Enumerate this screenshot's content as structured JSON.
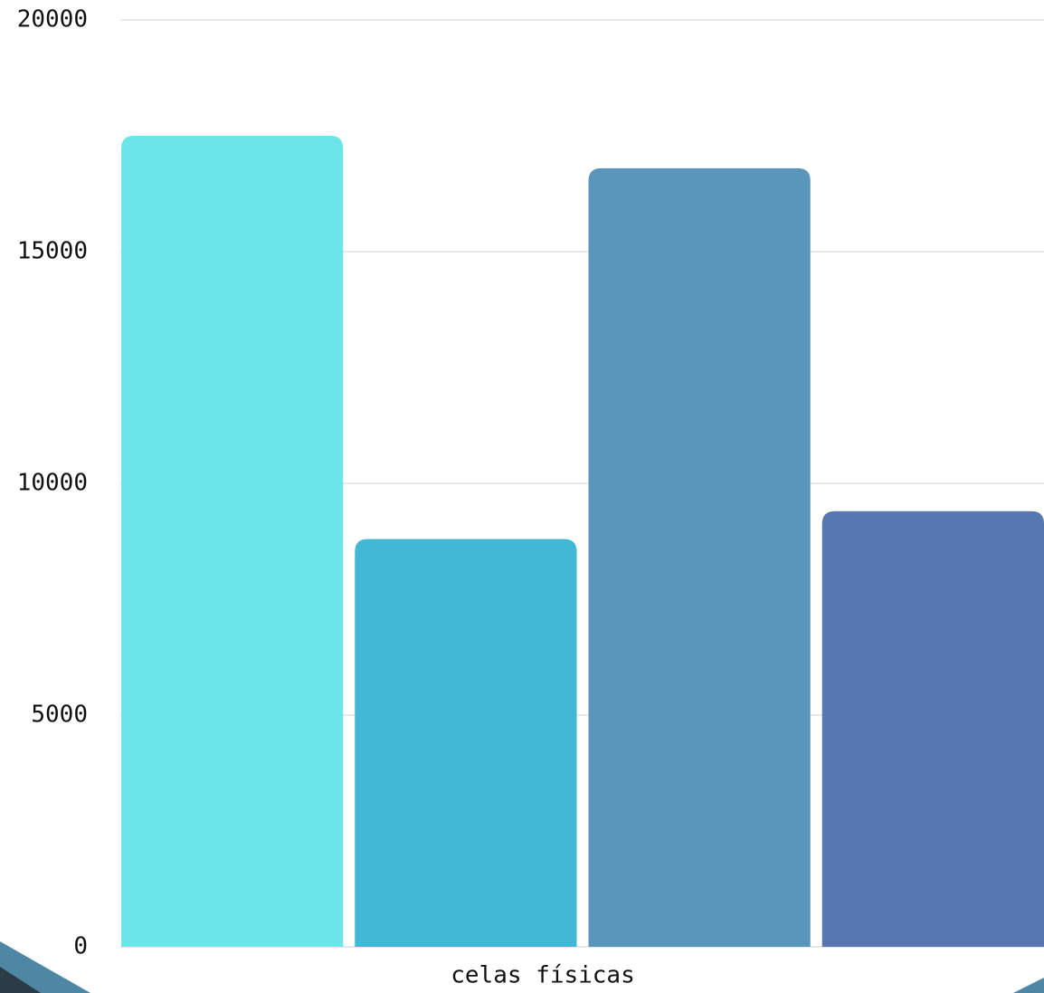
{
  "chart_data": {
    "type": "bar",
    "categories": [
      "celas físicas"
    ],
    "series": [
      {
        "color": "#6ce5e8",
        "values": [
          17500
        ]
      },
      {
        "color": "#42b7d6",
        "values": [
          8800
        ]
      },
      {
        "color": "#5a96bb",
        "values": [
          16800
        ]
      },
      {
        "color": "#5677b0",
        "values": [
          9400
        ]
      }
    ],
    "ylim": [
      0,
      20000
    ],
    "yticks": [
      0,
      5000,
      10000,
      15000,
      20000
    ],
    "grid": true
  }
}
